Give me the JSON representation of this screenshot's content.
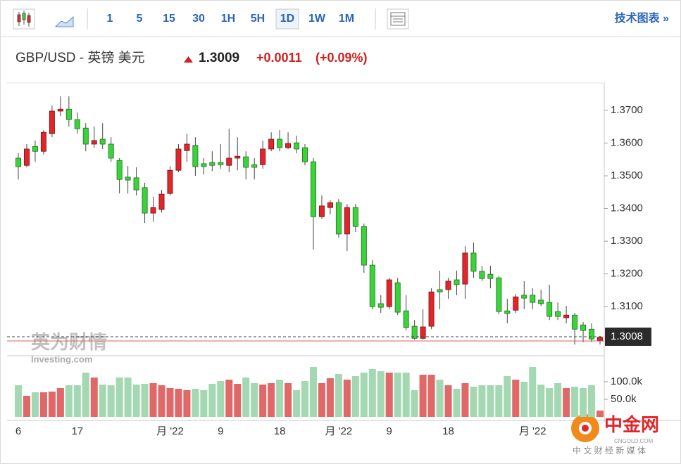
{
  "toolbar": {
    "intervals": [
      "1",
      "5",
      "15",
      "30",
      "1H",
      "5H",
      "1D",
      "1W",
      "1M"
    ],
    "active": "1D",
    "link": "技术图表 »"
  },
  "header": {
    "symbol": "GBP/USD - 英镑 美元",
    "price": "1.3009",
    "change": "+0.0011",
    "change_percent": "(+0.09%)"
  },
  "chart_data": {
    "type": "candlestick",
    "categories": [
      "6",
      null,
      null,
      null,
      null,
      null,
      null,
      "17",
      null,
      null,
      null,
      null,
      null,
      null,
      null,
      null,
      null,
      null,
      "月 '22",
      null,
      null,
      null,
      null,
      null,
      "9",
      null,
      null,
      null,
      null,
      null,
      null,
      "18",
      null,
      null,
      null,
      null,
      null,
      null,
      "月 '22",
      null,
      null,
      null,
      null,
      null,
      "9",
      null,
      null,
      null,
      null,
      null,
      null,
      "18",
      null,
      null,
      null,
      null,
      null,
      null,
      null,
      null,
      null,
      "月 '22",
      null,
      null,
      null,
      null,
      null,
      null,
      null,
      null
    ],
    "open": [
      1.3554,
      1.3532,
      1.359,
      1.3575,
      1.3629,
      1.3698,
      1.3704,
      1.3672,
      1.3646,
      1.3597,
      1.3612,
      1.3597,
      1.3547,
      1.3496,
      1.3494,
      1.3464,
      1.3386,
      1.3397,
      1.3446,
      1.3517,
      1.3577,
      1.3593,
      1.3537,
      1.3541,
      1.3541,
      1.3532,
      1.3554,
      1.3558,
      1.3534,
      1.3534,
      1.3582,
      1.3612,
      1.3586,
      1.3601,
      1.3586,
      1.3543,
      1.3375,
      1.3403,
      1.3418,
      1.3322,
      1.3403,
      1.3345,
      1.3227,
      1.3109,
      1.31,
      1.3173,
      1.3087,
      1.304,
      1.3003,
      1.304,
      1.3152,
      1.3152,
      1.3182,
      1.3169,
      1.3264,
      1.3208,
      1.3199,
      1.3188,
      1.3087,
      1.3089,
      1.3135,
      1.3135,
      1.312,
      1.3113,
      1.3085,
      1.3066,
      1.3074,
      1.3044,
      1.3031,
      1.2997
    ],
    "high": [
      1.3569,
      1.3597,
      1.3608,
      1.364,
      1.3715,
      1.3743,
      1.3743,
      1.3694,
      1.3661,
      1.3651,
      1.3661,
      1.3618,
      1.3554,
      1.353,
      1.3526,
      1.3479,
      1.3436,
      1.3457,
      1.353,
      1.3597,
      1.3629,
      1.3618,
      1.3554,
      1.3575,
      1.3597,
      1.3644,
      1.3618,
      1.3575,
      1.3554,
      1.3608,
      1.3633,
      1.364,
      1.3633,
      1.3623,
      1.3597,
      1.3554,
      1.344,
      1.3425,
      1.3429,
      1.3414,
      1.3414,
      1.3354,
      1.3242,
      1.3135,
      1.3188,
      1.3188,
      1.3135,
      1.3059,
      1.3092,
      1.3156,
      1.321,
      1.3188,
      1.321,
      1.3285,
      1.3296,
      1.3225,
      1.3225,
      1.3193,
      1.3124,
      1.3139,
      1.3178,
      1.3156,
      1.3152,
      1.3167,
      1.3113,
      1.3102,
      1.3081,
      1.3053,
      1.3049,
      1.301
    ],
    "low": [
      1.3489,
      1.3526,
      1.3543,
      1.3565,
      1.3618,
      1.3683,
      1.3651,
      1.3629,
      1.3575,
      1.3586,
      1.3582,
      1.3543,
      1.3446,
      1.3446,
      1.344,
      1.3356,
      1.336,
      1.3388,
      1.344,
      1.3511,
      1.3543,
      1.35,
      1.3504,
      1.3515,
      1.3522,
      1.3511,
      1.3517,
      1.3489,
      1.3489,
      1.3522,
      1.3575,
      1.3575,
      1.3582,
      1.3569,
      1.3532,
      1.3274,
      1.3369,
      1.3382,
      1.3311,
      1.327,
      1.3328,
      1.3203,
      1.3092,
      1.3081,
      1.3092,
      1.3074,
      1.3027,
      1.2999,
      1.2999,
      1.3031,
      1.3092,
      1.3124,
      1.3135,
      1.3124,
      1.3188,
      1.3178,
      1.3156,
      1.3076,
      1.3049,
      1.3081,
      1.3092,
      1.3092,
      1.3102,
      1.3059,
      1.3059,
      1.3049,
      1.2984,
      1.2991,
      1.2991,
      1.2984
    ],
    "close": [
      1.3528,
      1.3582,
      1.3575,
      1.3633,
      1.3698,
      1.3704,
      1.3672,
      1.3644,
      1.3597,
      1.3608,
      1.3597,
      1.3554,
      1.3489,
      1.3487,
      1.3457,
      1.3386,
      1.3403,
      1.3444,
      1.3517,
      1.3582,
      1.3597,
      1.3528,
      1.3528,
      1.3532,
      1.3534,
      1.3554,
      1.356,
      1.3526,
      1.3526,
      1.3582,
      1.3612,
      1.3586,
      1.3599,
      1.3582,
      1.3543,
      1.3375,
      1.3408,
      1.3418,
      1.3322,
      1.3403,
      1.3345,
      1.3227,
      1.31,
      1.3098,
      1.3182,
      1.3083,
      1.3036,
      1.3003,
      1.3038,
      1.3145,
      1.3145,
      1.3178,
      1.3167,
      1.3264,
      1.3208,
      1.3186,
      1.3186,
      1.3085,
      1.3079,
      1.313,
      1.3126,
      1.3113,
      1.3109,
      1.307,
      1.307,
      1.3074,
      1.3031,
      1.3027,
      1.3001,
      1.3006
    ],
    "volume": [
      90000,
      60000,
      70000,
      70000,
      72000,
      82000,
      90000,
      90000,
      126000,
      112000,
      92000,
      90000,
      112000,
      112000,
      92000,
      94000,
      96000,
      90000,
      82000,
      80000,
      76000,
      80000,
      76000,
      94000,
      102000,
      106000,
      94000,
      112000,
      96000,
      92000,
      96000,
      106000,
      96000,
      76000,
      102000,
      142000,
      96000,
      110000,
      122000,
      106000,
      116000,
      126000,
      136000,
      130000,
      126000,
      126000,
      126000,
      76000,
      120000,
      120000,
      106000,
      90000,
      80000,
      96000,
      86000,
      90000,
      90000,
      90000,
      116000,
      106000,
      100000,
      142000,
      92000,
      82000,
      96000,
      82000,
      86000,
      82000,
      90000,
      18000
    ],
    "ylim": [
      1.2952,
      1.3784
    ],
    "yticks": [
      {
        "value": 1.37,
        "label": "1.3700"
      },
      {
        "value": 1.36,
        "label": "1.3600"
      },
      {
        "value": 1.35,
        "label": "1.3500"
      },
      {
        "value": 1.34,
        "label": "1.3400"
      },
      {
        "value": 1.33,
        "label": "1.3300"
      },
      {
        "value": 1.32,
        "label": "1.3200"
      },
      {
        "value": 1.31,
        "label": "1.3100"
      }
    ],
    "y2lim": [
      0,
      170000
    ],
    "y2ticks": [
      {
        "value": 100000,
        "label": "100.0k"
      },
      {
        "value": 50000,
        "label": "50.0k"
      }
    ],
    "price_line": {
      "value": 1.3008,
      "label": "1.3008"
    },
    "reference_line": 1.2995,
    "up_color": "#e0262b",
    "down_color": "#3ad43a",
    "volume_up_color": "#e06868",
    "volume_down_color": "#a4d8b2",
    "grid": false
  },
  "watermarks": {
    "brand": "英为财情",
    "brand_en": "Investing.com",
    "site": "中金网",
    "site_en": "CNGOLD.COM",
    "slogan": "中 文 财 经 新 媒 体"
  }
}
